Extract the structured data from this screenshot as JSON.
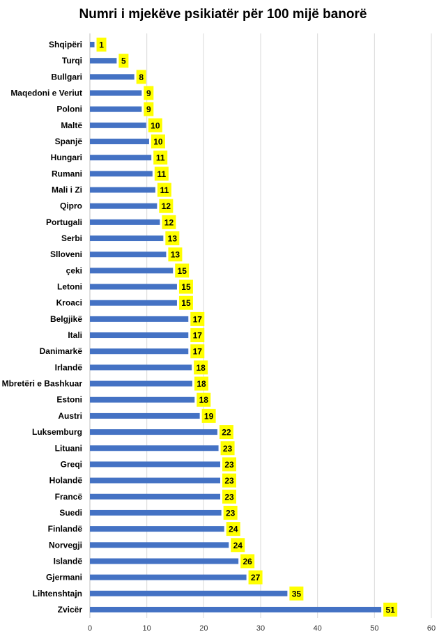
{
  "chart_data": {
    "type": "bar",
    "orientation": "horizontal",
    "title": "Numri i mjekëve psikiatër për 100 mijë banorë",
    "categories": [
      "Shqipëri",
      "Turqi",
      "Bullgari",
      "Maqedoni e Veriut",
      "Poloni",
      "Maltë",
      "Spanjë",
      "Hungari",
      "Rumani",
      "Mali i Zi",
      "Qipro",
      "Portugali",
      "Serbi",
      "Slloveni",
      "çeki",
      "Letoni",
      "Kroaci",
      "Belgjikë",
      "Itali",
      "Danimarkë",
      "Irlandë",
      "Mbretëri e Bashkuar",
      "Estoni",
      "Austri",
      "Luksemburg",
      "Lituani",
      "Greqi",
      "Holandë",
      "Francë",
      "Suedi",
      "Finlandë",
      "Norvegji",
      "Islandë",
      "Gjermani",
      "Lihtenshtajn",
      "Zvicër"
    ],
    "values": [
      1,
      5,
      8,
      9,
      9,
      10,
      10,
      11,
      11,
      11,
      12,
      12,
      13,
      13,
      15,
      15,
      15,
      17,
      17,
      17,
      18,
      18,
      18,
      19,
      22,
      23,
      23,
      23,
      23,
      23,
      24,
      24,
      26,
      27,
      35,
      51
    ],
    "plotted_values": [
      0.8,
      4.7,
      7.8,
      9.1,
      9.1,
      9.9,
      10.4,
      10.8,
      11.0,
      11.5,
      11.8,
      12.3,
      12.9,
      13.4,
      14.6,
      15.3,
      15.3,
      17.3,
      17.3,
      17.3,
      17.9,
      18.0,
      18.4,
      19.3,
      22.4,
      22.6,
      22.9,
      22.9,
      22.9,
      23.1,
      23.6,
      24.4,
      26.1,
      27.5,
      34.7,
      51.2
    ],
    "xlim": [
      0,
      60
    ],
    "xticks": [
      0,
      10,
      20,
      30,
      40,
      50,
      60
    ],
    "grid": true,
    "bar_color": "#4472c4",
    "label_bg_color": "#ffff00"
  }
}
